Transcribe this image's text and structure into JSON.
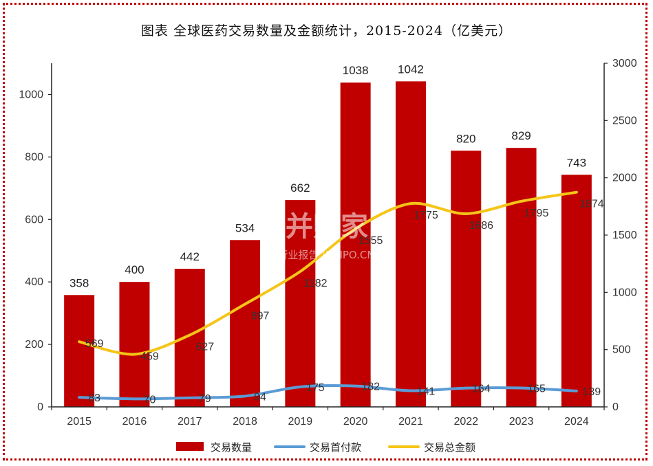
{
  "chart_data": {
    "type": "bar",
    "title": "图表 全球医药交易数量及金额统计，2015-2024（亿美元）",
    "categories": [
      "2015",
      "2016",
      "2017",
      "2018",
      "2019",
      "2020",
      "2021",
      "2022",
      "2023",
      "2024"
    ],
    "series": [
      {
        "name": "交易数量",
        "kind": "bar",
        "axis": "left",
        "color": "#c00000",
        "values": [
          358,
          400,
          442,
          534,
          662,
          1038,
          1042,
          820,
          829,
          743
        ]
      },
      {
        "name": "交易首付款",
        "kind": "line",
        "axis": "right",
        "color": "#5b9bd5",
        "values": [
          83,
          70,
          79,
          94,
          175,
          182,
          141,
          164,
          165,
          139
        ]
      },
      {
        "name": "交易总金额",
        "kind": "line",
        "axis": "right",
        "color": "#f5c518",
        "values": [
          569,
          459,
          627,
          897,
          1182,
          1555,
          1775,
          1686,
          1795,
          1874
        ]
      }
    ],
    "left_ylim": [
      0,
      1100
    ],
    "left_ticks": [
      0,
      200,
      400,
      600,
      800,
      1000
    ],
    "right_ylim": [
      0,
      3000
    ],
    "right_ticks": [
      0,
      500,
      1000,
      1500,
      2000,
      2500,
      3000
    ],
    "legend": "bottom",
    "grid": false
  },
  "watermark": {
    "main": "并购家",
    "sub": "行业报告 IPOIPO.CN"
  }
}
